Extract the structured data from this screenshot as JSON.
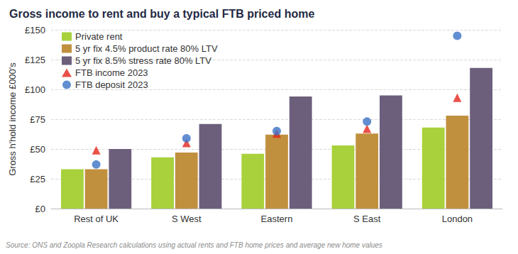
{
  "chart_data": {
    "type": "bar",
    "title": "Gross income to rent and buy a typical FTB priced home",
    "y_label": "Gross h'hold income £000's",
    "source": "Source: ONS and Zoopla Research calculations using actual rents and FTB home prices and average new home values",
    "categories": [
      "Rest of UK",
      "S West",
      "Eastern",
      "S East",
      "London"
    ],
    "series": [
      {
        "name": "Private rent",
        "type": "bar",
        "color": "#a8d13c",
        "values": [
          33,
          43,
          46,
          53,
          68
        ]
      },
      {
        "name": "5 yr fix 4.5% product rate 80% LTV",
        "type": "bar",
        "color": "#c1903e",
        "values": [
          33,
          47,
          62,
          63,
          78
        ]
      },
      {
        "name": "5 yr fix 8.5% stress rate 80% LTV",
        "type": "bar",
        "color": "#6c5f7c",
        "values": [
          50,
          71,
          94,
          95,
          118
        ]
      },
      {
        "name": "FTB income 2023",
        "type": "scatter",
        "marker": "triangle",
        "color": "#e3261c",
        "values": [
          49,
          55,
          63,
          67,
          93
        ]
      },
      {
        "name": "FTB deposit 2023",
        "type": "scatter",
        "marker": "circle",
        "color": "#3b72c6",
        "values": [
          37,
          59,
          65,
          73,
          145
        ]
      }
    ],
    "ylim": [
      0,
      150
    ],
    "yticks": [
      {
        "value": 0,
        "label": "£0"
      },
      {
        "value": 25,
        "label": "£25"
      },
      {
        "value": 50,
        "label": "£50"
      },
      {
        "value": 75,
        "label": "£75"
      },
      {
        "value": 100,
        "label": "£100"
      },
      {
        "value": 125,
        "label": "£125"
      },
      {
        "value": 150,
        "label": "£150"
      }
    ],
    "grid": true,
    "legend": "top-left"
  }
}
